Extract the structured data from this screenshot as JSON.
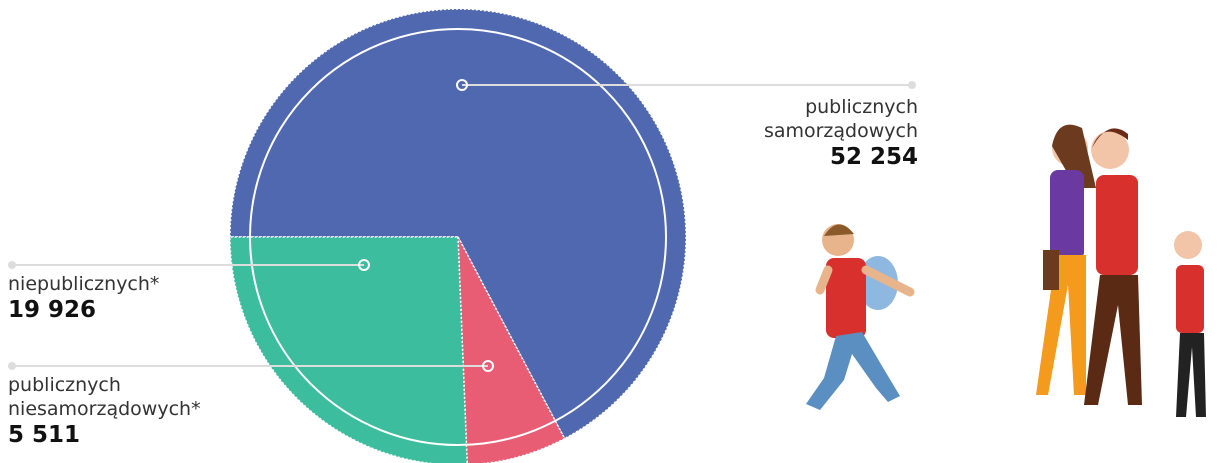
{
  "chart_data": {
    "type": "pie",
    "categories": [
      "publicznych samorządowych",
      "publicznych niesamorządowych*",
      "niepublicznych*"
    ],
    "values": [
      52254,
      5511,
      19926
    ],
    "value_labels": [
      "52 254",
      "5 511",
      "19 926"
    ],
    "colors": [
      "#5068b0",
      "#e85d74",
      "#3bbd9e"
    ]
  }
}
